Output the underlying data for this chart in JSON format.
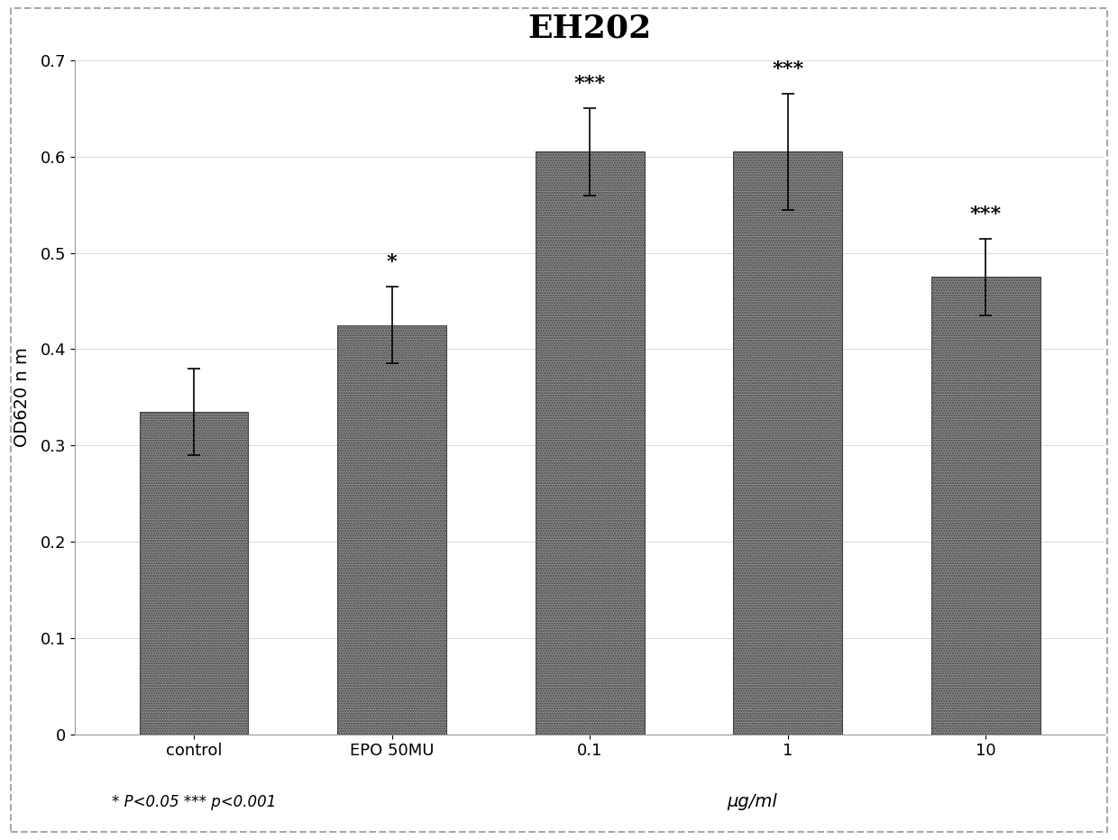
{
  "title": "EH202",
  "categories": [
    "control",
    "EPO 50MU",
    "0.1",
    "1",
    "10"
  ],
  "values": [
    0.335,
    0.425,
    0.605,
    0.605,
    0.475
  ],
  "errors": [
    0.045,
    0.04,
    0.045,
    0.06,
    0.04
  ],
  "significance": [
    "",
    "*",
    "***",
    "***",
    "***"
  ],
  "ylabel": "OD620 n m",
  "xlabel": "μg/ml",
  "ylim": [
    0,
    0.7
  ],
  "yticks": [
    0,
    0.1,
    0.2,
    0.3,
    0.4,
    0.5,
    0.6,
    0.7
  ],
  "bar_color": "#808080",
  "background_color": "#FFFFFF",
  "plot_bg_color": "#FFFFFF",
  "footnote": "* P<0.05 *** p<0.001",
  "title_fontsize": 26,
  "axis_label_fontsize": 14,
  "tick_fontsize": 13,
  "sig_fontsize": 16,
  "footnote_fontsize": 12
}
